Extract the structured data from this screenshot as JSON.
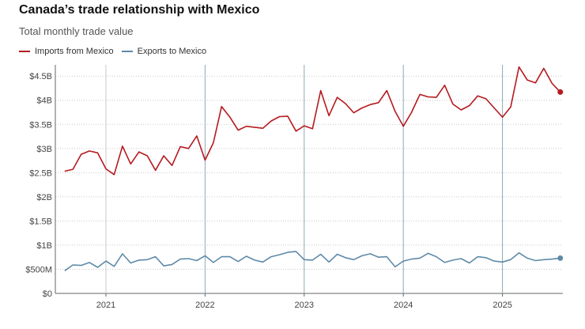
{
  "title": "Canada’s trade relationship with Mexico",
  "subtitle": "Total monthly trade value",
  "colors": {
    "imports": "#b51a1f",
    "exports": "#5f8aa8",
    "grid": "#c8c8c8",
    "vline": "#8fa8ba"
  },
  "chart_data": {
    "type": "line",
    "title": "Canada’s trade relationship with Mexico",
    "subtitle": "Total monthly trade value",
    "xlabel": "",
    "ylabel": "",
    "x_tick_labels": [
      "2021",
      "2022",
      "2023",
      "2024",
      "2025"
    ],
    "y_tick_labels": [
      "$0",
      "$500M",
      "$1B",
      "$1.5B",
      "$2B",
      "$2.5B",
      "$3B",
      "$3.5B",
      "$4B",
      "$4.5B"
    ],
    "ylim": [
      0,
      4700000000
    ],
    "x_start": "2020-08",
    "x_end": "2025-08",
    "grid": "horizontal gridlines; vertical lines at each year",
    "legend_position": "top-left",
    "series": [
      {
        "name": "Imports from Mexico",
        "color": "#b51a1f",
        "values": [
          2.53,
          2.57,
          2.88,
          2.95,
          2.91,
          2.58,
          2.46,
          3.05,
          2.68,
          2.93,
          2.85,
          2.55,
          2.85,
          2.65,
          3.04,
          3.0,
          3.26,
          2.76,
          3.12,
          3.87,
          3.65,
          3.38,
          3.46,
          3.44,
          3.42,
          3.57,
          3.66,
          3.67,
          3.36,
          3.47,
          3.41,
          4.2,
          3.68,
          4.06,
          3.93,
          3.74,
          3.84,
          3.91,
          3.95,
          4.2,
          3.77,
          3.46,
          3.75,
          4.12,
          4.07,
          4.06,
          4.31,
          3.92,
          3.8,
          3.89,
          4.09,
          4.03,
          3.84,
          3.65,
          3.86,
          4.69,
          4.42,
          4.36,
          4.66,
          4.35,
          4.17
        ]
      },
      {
        "name": "Exports to Mexico",
        "color": "#5f8aa8",
        "values": [
          0.47,
          0.59,
          0.58,
          0.64,
          0.54,
          0.67,
          0.56,
          0.82,
          0.63,
          0.69,
          0.7,
          0.76,
          0.57,
          0.6,
          0.71,
          0.72,
          0.68,
          0.78,
          0.64,
          0.76,
          0.76,
          0.66,
          0.77,
          0.69,
          0.65,
          0.76,
          0.8,
          0.85,
          0.87,
          0.7,
          0.69,
          0.81,
          0.65,
          0.81,
          0.74,
          0.7,
          0.78,
          0.82,
          0.75,
          0.76,
          0.55,
          0.67,
          0.71,
          0.73,
          0.83,
          0.76,
          0.64,
          0.69,
          0.72,
          0.63,
          0.76,
          0.74,
          0.67,
          0.65,
          0.7,
          0.84,
          0.73,
          0.68,
          0.7,
          0.71,
          0.73
        ]
      }
    ]
  }
}
